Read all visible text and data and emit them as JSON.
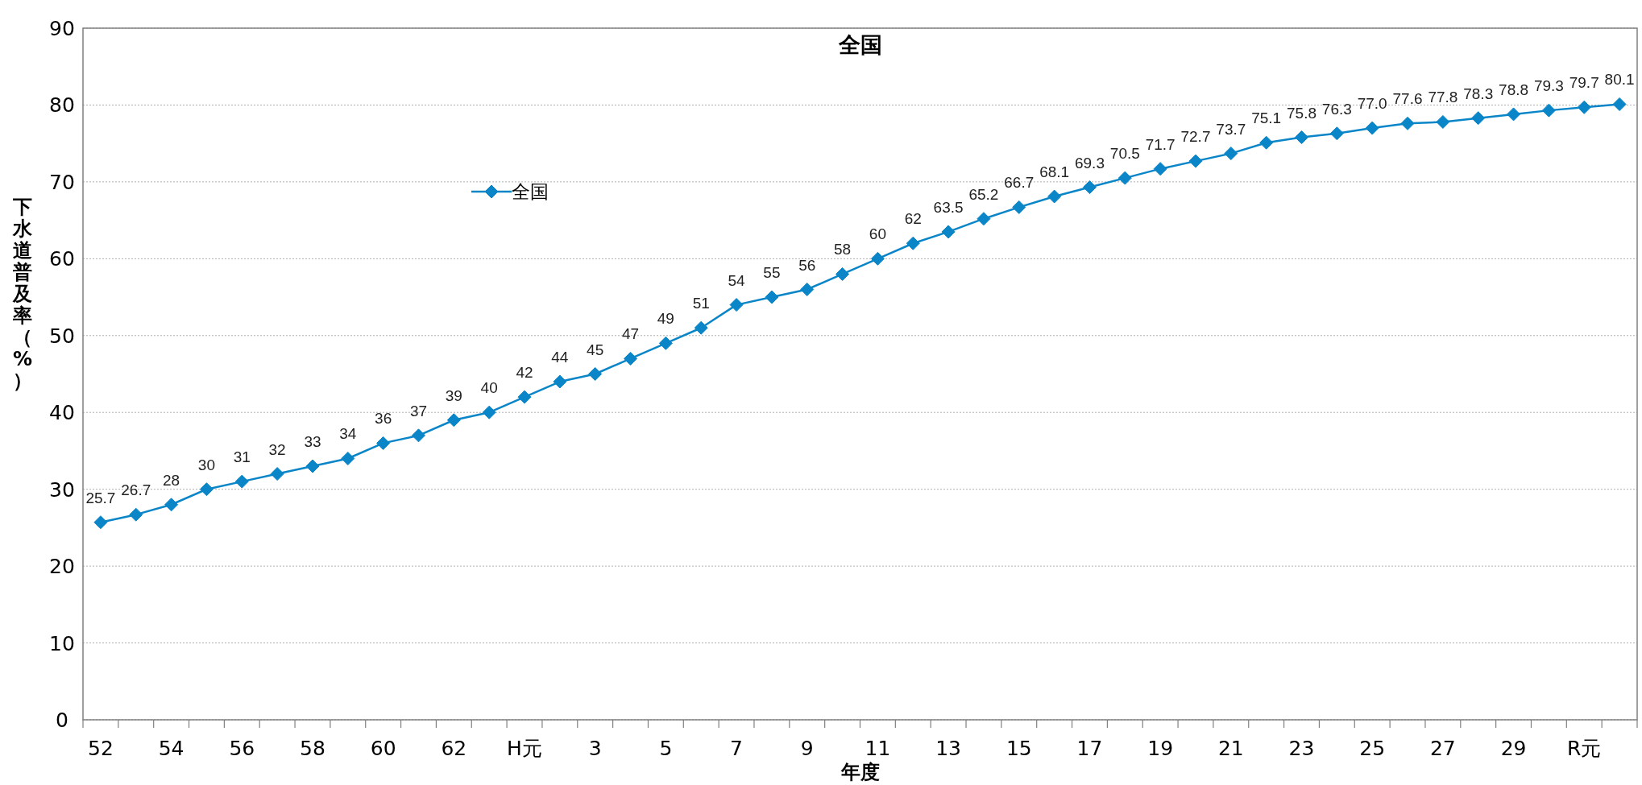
{
  "chart_data": {
    "type": "line",
    "title": "全国",
    "xlabel": "年度",
    "ylabel": "下水道普及率（%）",
    "categories": [
      "52",
      null,
      "54",
      null,
      "56",
      null,
      "58",
      null,
      "60",
      null,
      "62",
      null,
      "H元",
      null,
      "3",
      null,
      "5",
      null,
      "7",
      null,
      "9",
      null,
      "11",
      null,
      "13",
      null,
      "15",
      null,
      "17",
      null,
      "19",
      null,
      "21",
      null,
      "23",
      null,
      "25",
      null,
      "27",
      null,
      "29",
      null,
      "R元",
      null
    ],
    "series": [
      {
        "name": "全国",
        "color": "#0a86c8",
        "values": [
          25.7,
          26.7,
          28,
          30,
          31,
          32,
          33,
          34,
          36,
          37,
          39,
          40,
          42,
          44,
          45,
          47,
          49,
          51,
          54,
          55,
          56,
          58,
          60,
          62,
          63.5,
          65.2,
          66.7,
          68.1,
          69.3,
          70.5,
          71.7,
          72.7,
          73.7,
          75.1,
          75.8,
          76.3,
          77.0,
          77.6,
          77.8,
          78.3,
          78.8,
          79.3,
          79.7,
          80.1
        ],
        "value_labels": [
          "25.7",
          "26.7",
          "28",
          "30",
          "31",
          "32",
          "33",
          "34",
          "36",
          "37",
          "39",
          "40",
          "42",
          "44",
          "45",
          "47",
          "49",
          "51",
          "54",
          "55",
          "56",
          "58",
          "60",
          "62",
          "63.5",
          "65.2",
          "66.7",
          "68.1",
          "69.3",
          "70.5",
          "71.7",
          "72.7",
          "73.7",
          "75.1",
          "75.8",
          "76.3",
          "77.0",
          "77.6",
          "77.8",
          "78.3",
          "78.8",
          "79.3",
          "79.7",
          "80.1"
        ]
      }
    ],
    "ylim": [
      0,
      90
    ],
    "yticks": [
      0,
      10,
      20,
      30,
      40,
      50,
      60,
      70,
      80,
      90
    ],
    "grid": "y",
    "legend": "top left",
    "marker": "diamond",
    "line_style": "solid"
  }
}
